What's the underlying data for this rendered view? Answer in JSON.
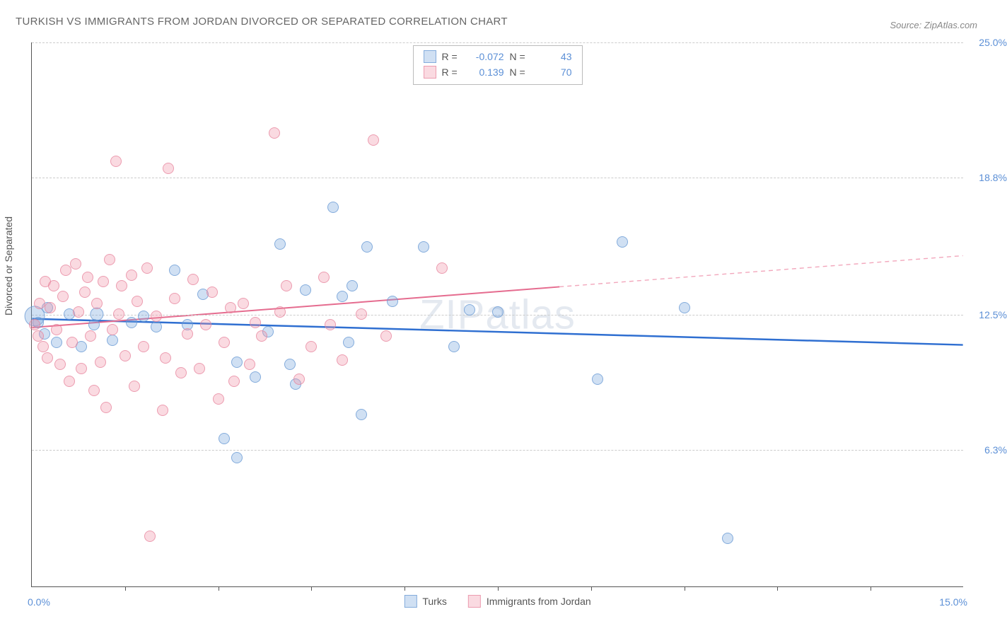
{
  "title": "TURKISH VS IMMIGRANTS FROM JORDAN DIVORCED OR SEPARATED CORRELATION CHART",
  "source_label": "Source: ZipAtlas.com",
  "watermark": "ZIPatlas",
  "ylabel": "Divorced or Separated",
  "chart": {
    "type": "scatter",
    "xlim": [
      0,
      15
    ],
    "ylim": [
      0,
      25
    ],
    "xlim_labels": {
      "min": "0.0%",
      "max": "15.0%"
    },
    "ytick_positions": [
      6.3,
      12.5,
      18.8,
      25.0
    ],
    "ytick_labels": [
      "6.3%",
      "12.5%",
      "18.8%",
      "25.0%"
    ],
    "xtick_positions": [
      1.5,
      3.0,
      4.5,
      6.0,
      7.5,
      9.0,
      10.5,
      12.0,
      13.5
    ],
    "background_color": "#ffffff",
    "grid_color": "#cccccc",
    "grid_dash": true,
    "marker_base_radius": 8,
    "series": [
      {
        "name": "Turks",
        "color_fill": "rgba(120,165,220,0.35)",
        "color_stroke": "rgba(100,150,210,0.7)",
        "R": "-0.072",
        "N": "43",
        "trend": {
          "y_at_x0": 12.3,
          "y_at_x15": 11.1,
          "solid_until_x": 15.0,
          "color": "#2f6fd1",
          "width": 2.5
        },
        "points": [
          {
            "x": 0.05,
            "y": 12.4,
            "s": 1.8
          },
          {
            "x": 0.1,
            "y": 12.1,
            "s": 1.0
          },
          {
            "x": 0.2,
            "y": 11.6,
            "s": 1.0
          },
          {
            "x": 0.25,
            "y": 12.8,
            "s": 1.0
          },
          {
            "x": 0.4,
            "y": 11.2,
            "s": 1.0
          },
          {
            "x": 0.6,
            "y": 12.5,
            "s": 1.0
          },
          {
            "x": 0.8,
            "y": 11.0,
            "s": 1.0
          },
          {
            "x": 1.0,
            "y": 12.0,
            "s": 1.0
          },
          {
            "x": 1.05,
            "y": 12.5,
            "s": 1.2
          },
          {
            "x": 1.3,
            "y": 11.3,
            "s": 1.0
          },
          {
            "x": 1.6,
            "y": 12.1,
            "s": 1.0
          },
          {
            "x": 1.8,
            "y": 12.4,
            "s": 1.0
          },
          {
            "x": 2.0,
            "y": 11.9,
            "s": 1.0
          },
          {
            "x": 2.3,
            "y": 14.5,
            "s": 1.0
          },
          {
            "x": 2.5,
            "y": 12.0,
            "s": 1.0
          },
          {
            "x": 2.75,
            "y": 13.4,
            "s": 1.0
          },
          {
            "x": 3.1,
            "y": 6.8,
            "s": 1.0
          },
          {
            "x": 3.3,
            "y": 10.3,
            "s": 1.0
          },
          {
            "x": 3.3,
            "y": 5.9,
            "s": 1.0
          },
          {
            "x": 3.6,
            "y": 9.6,
            "s": 1.0
          },
          {
            "x": 3.8,
            "y": 11.7,
            "s": 1.0
          },
          {
            "x": 4.0,
            "y": 15.7,
            "s": 1.0
          },
          {
            "x": 4.15,
            "y": 10.2,
            "s": 1.0
          },
          {
            "x": 4.25,
            "y": 9.3,
            "s": 1.0
          },
          {
            "x": 4.4,
            "y": 13.6,
            "s": 1.0
          },
          {
            "x": 4.85,
            "y": 17.4,
            "s": 1.0
          },
          {
            "x": 5.0,
            "y": 13.3,
            "s": 1.0
          },
          {
            "x": 5.1,
            "y": 11.2,
            "s": 1.0
          },
          {
            "x": 5.15,
            "y": 13.8,
            "s": 1.0
          },
          {
            "x": 5.3,
            "y": 7.9,
            "s": 1.0
          },
          {
            "x": 5.4,
            "y": 15.6,
            "s": 1.0
          },
          {
            "x": 5.8,
            "y": 13.1,
            "s": 1.0
          },
          {
            "x": 6.3,
            "y": 15.6,
            "s": 1.0
          },
          {
            "x": 6.8,
            "y": 11.0,
            "s": 1.0
          },
          {
            "x": 7.05,
            "y": 12.7,
            "s": 1.0
          },
          {
            "x": 7.5,
            "y": 12.6,
            "s": 1.0
          },
          {
            "x": 9.1,
            "y": 9.5,
            "s": 1.0
          },
          {
            "x": 9.5,
            "y": 15.8,
            "s": 1.0
          },
          {
            "x": 10.5,
            "y": 12.8,
            "s": 1.0
          },
          {
            "x": 11.2,
            "y": 2.2,
            "s": 1.0
          }
        ]
      },
      {
        "name": "Immigrants from Jordan",
        "color_fill": "rgba(240,150,170,0.35)",
        "color_stroke": "rgba(230,130,155,0.7)",
        "R": "0.139",
        "N": "70",
        "trend": {
          "y_at_x0": 11.9,
          "y_at_x15": 15.2,
          "solid_until_x": 8.5,
          "color": "#e56c8f",
          "width": 2,
          "dash_color": "#f2a7bc"
        },
        "points": [
          {
            "x": 0.05,
            "y": 12.0,
            "s": 1.0
          },
          {
            "x": 0.1,
            "y": 11.5,
            "s": 1.0
          },
          {
            "x": 0.12,
            "y": 13.0,
            "s": 1.0
          },
          {
            "x": 0.18,
            "y": 11.0,
            "s": 1.0
          },
          {
            "x": 0.22,
            "y": 14.0,
            "s": 1.0
          },
          {
            "x": 0.25,
            "y": 10.5,
            "s": 1.0
          },
          {
            "x": 0.3,
            "y": 12.8,
            "s": 1.0
          },
          {
            "x": 0.35,
            "y": 13.8,
            "s": 1.0
          },
          {
            "x": 0.4,
            "y": 11.8,
            "s": 1.0
          },
          {
            "x": 0.45,
            "y": 10.2,
            "s": 1.0
          },
          {
            "x": 0.5,
            "y": 13.3,
            "s": 1.0
          },
          {
            "x": 0.55,
            "y": 14.5,
            "s": 1.0
          },
          {
            "x": 0.6,
            "y": 9.4,
            "s": 1.0
          },
          {
            "x": 0.65,
            "y": 11.2,
            "s": 1.0
          },
          {
            "x": 0.7,
            "y": 14.8,
            "s": 1.0
          },
          {
            "x": 0.75,
            "y": 12.6,
            "s": 1.0
          },
          {
            "x": 0.8,
            "y": 10.0,
            "s": 1.0
          },
          {
            "x": 0.85,
            "y": 13.5,
            "s": 1.0
          },
          {
            "x": 0.9,
            "y": 14.2,
            "s": 1.0
          },
          {
            "x": 0.95,
            "y": 11.5,
            "s": 1.0
          },
          {
            "x": 1.0,
            "y": 9.0,
            "s": 1.0
          },
          {
            "x": 1.05,
            "y": 13.0,
            "s": 1.0
          },
          {
            "x": 1.1,
            "y": 10.3,
            "s": 1.0
          },
          {
            "x": 1.15,
            "y": 14.0,
            "s": 1.0
          },
          {
            "x": 1.2,
            "y": 8.2,
            "s": 1.0
          },
          {
            "x": 1.25,
            "y": 15.0,
            "s": 1.0
          },
          {
            "x": 1.3,
            "y": 11.8,
            "s": 1.0
          },
          {
            "x": 1.35,
            "y": 19.5,
            "s": 1.0
          },
          {
            "x": 1.4,
            "y": 12.5,
            "s": 1.0
          },
          {
            "x": 1.45,
            "y": 13.8,
            "s": 1.0
          },
          {
            "x": 1.5,
            "y": 10.6,
            "s": 1.0
          },
          {
            "x": 1.6,
            "y": 14.3,
            "s": 1.0
          },
          {
            "x": 1.65,
            "y": 9.2,
            "s": 1.0
          },
          {
            "x": 1.7,
            "y": 13.1,
            "s": 1.0
          },
          {
            "x": 1.8,
            "y": 11.0,
            "s": 1.0
          },
          {
            "x": 1.85,
            "y": 14.6,
            "s": 1.0
          },
          {
            "x": 1.9,
            "y": 2.3,
            "s": 1.0
          },
          {
            "x": 2.0,
            "y": 12.4,
            "s": 1.0
          },
          {
            "x": 2.1,
            "y": 8.1,
            "s": 1.0
          },
          {
            "x": 2.15,
            "y": 10.5,
            "s": 1.0
          },
          {
            "x": 2.2,
            "y": 19.2,
            "s": 1.0
          },
          {
            "x": 2.3,
            "y": 13.2,
            "s": 1.0
          },
          {
            "x": 2.4,
            "y": 9.8,
            "s": 1.0
          },
          {
            "x": 2.5,
            "y": 11.6,
            "s": 1.0
          },
          {
            "x": 2.6,
            "y": 14.1,
            "s": 1.0
          },
          {
            "x": 2.7,
            "y": 10.0,
            "s": 1.0
          },
          {
            "x": 2.8,
            "y": 12.0,
            "s": 1.0
          },
          {
            "x": 2.9,
            "y": 13.5,
            "s": 1.0
          },
          {
            "x": 3.0,
            "y": 8.6,
            "s": 1.0
          },
          {
            "x": 3.1,
            "y": 11.2,
            "s": 1.0
          },
          {
            "x": 3.2,
            "y": 12.8,
            "s": 1.0
          },
          {
            "x": 3.25,
            "y": 9.4,
            "s": 1.0
          },
          {
            "x": 3.4,
            "y": 13.0,
            "s": 1.0
          },
          {
            "x": 3.5,
            "y": 10.2,
            "s": 1.0
          },
          {
            "x": 3.6,
            "y": 12.1,
            "s": 1.0
          },
          {
            "x": 3.7,
            "y": 11.5,
            "s": 1.0
          },
          {
            "x": 3.9,
            "y": 20.8,
            "s": 1.0
          },
          {
            "x": 4.0,
            "y": 12.6,
            "s": 1.0
          },
          {
            "x": 4.1,
            "y": 13.8,
            "s": 1.0
          },
          {
            "x": 4.3,
            "y": 9.5,
            "s": 1.0
          },
          {
            "x": 4.5,
            "y": 11.0,
            "s": 1.0
          },
          {
            "x": 4.7,
            "y": 14.2,
            "s": 1.0
          },
          {
            "x": 4.8,
            "y": 12.0,
            "s": 1.0
          },
          {
            "x": 5.0,
            "y": 10.4,
            "s": 1.0
          },
          {
            "x": 5.3,
            "y": 12.5,
            "s": 1.0
          },
          {
            "x": 5.5,
            "y": 20.5,
            "s": 1.0
          },
          {
            "x": 5.7,
            "y": 11.5,
            "s": 1.0
          },
          {
            "x": 6.6,
            "y": 14.6,
            "s": 1.0
          }
        ]
      }
    ]
  },
  "legend_bottom": [
    {
      "swatch": "turks",
      "label": "Turks"
    },
    {
      "swatch": "jordan",
      "label": "Immigrants from Jordan"
    }
  ]
}
